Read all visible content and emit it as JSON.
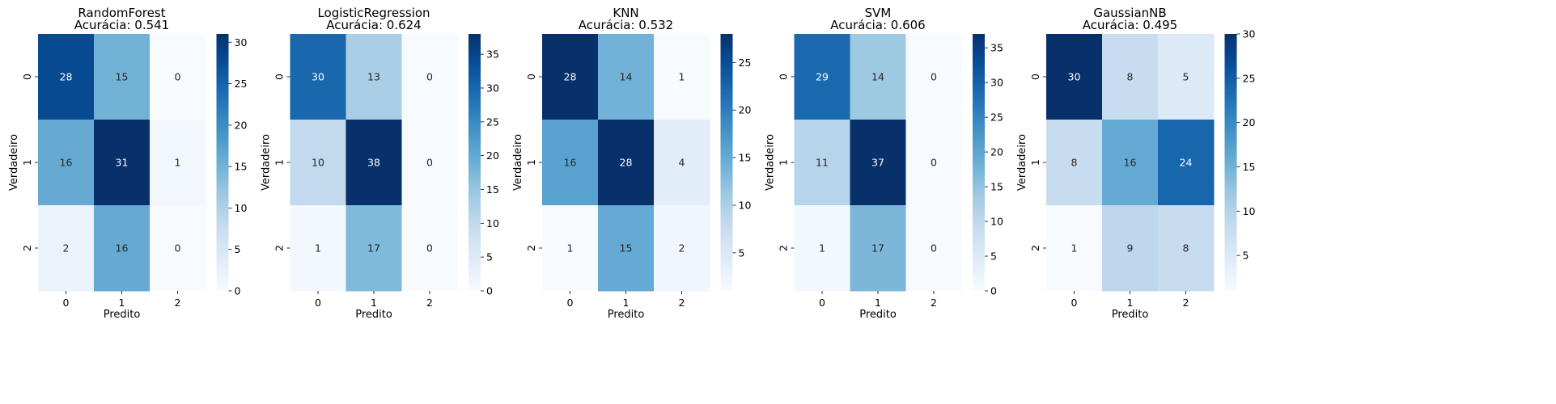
{
  "figure": {
    "colormap": "Blues",
    "colormap_low": "#f7fbff",
    "colormap_high": "#08306b"
  },
  "chart_data": [
    {
      "type": "heatmap",
      "title": [
        "RandomForest",
        "Acurácia: 0.541"
      ],
      "xlabel": "Predito",
      "ylabel": "Verdadeiro",
      "x_categories": [
        "0",
        "1",
        "2"
      ],
      "y_categories": [
        "0",
        "1",
        "2"
      ],
      "matrix": [
        [
          28,
          15,
          0
        ],
        [
          16,
          31,
          1
        ],
        [
          2,
          16,
          0
        ]
      ],
      "color_range": [
        0,
        31
      ],
      "colorbar_ticks": [
        0,
        5,
        10,
        15,
        20,
        25,
        30
      ]
    },
    {
      "type": "heatmap",
      "title": [
        "LogisticRegression",
        "Acurácia: 0.624"
      ],
      "xlabel": "Predito",
      "ylabel": "Verdadeiro",
      "x_categories": [
        "0",
        "1",
        "2"
      ],
      "y_categories": [
        "0",
        "1",
        "2"
      ],
      "matrix": [
        [
          30,
          13,
          0
        ],
        [
          10,
          38,
          0
        ],
        [
          1,
          17,
          0
        ]
      ],
      "color_range": [
        0,
        38
      ],
      "colorbar_ticks": [
        0,
        5,
        10,
        15,
        20,
        25,
        30,
        35
      ]
    },
    {
      "type": "heatmap",
      "title": [
        "KNN",
        "Acurácia: 0.532"
      ],
      "xlabel": "Predito",
      "ylabel": "Verdadeiro",
      "x_categories": [
        "0",
        "1",
        "2"
      ],
      "y_categories": [
        "0",
        "1",
        "2"
      ],
      "matrix": [
        [
          28,
          14,
          1
        ],
        [
          16,
          28,
          4
        ],
        [
          1,
          15,
          2
        ]
      ],
      "color_range": [
        1,
        28
      ],
      "colorbar_ticks": [
        5,
        10,
        15,
        20,
        25
      ]
    },
    {
      "type": "heatmap",
      "title": [
        "SVM",
        "Acurácia: 0.606"
      ],
      "xlabel": "Predito",
      "ylabel": "Verdadeiro",
      "x_categories": [
        "0",
        "1",
        "2"
      ],
      "y_categories": [
        "0",
        "1",
        "2"
      ],
      "matrix": [
        [
          29,
          14,
          0
        ],
        [
          11,
          37,
          0
        ],
        [
          1,
          17,
          0
        ]
      ],
      "color_range": [
        0,
        37
      ],
      "colorbar_ticks": [
        0,
        5,
        10,
        15,
        20,
        25,
        30,
        35
      ]
    },
    {
      "type": "heatmap",
      "title": [
        "GaussianNB",
        "Acurácia: 0.495"
      ],
      "xlabel": "Predito",
      "ylabel": "Verdadeiro",
      "x_categories": [
        "0",
        "1",
        "2"
      ],
      "y_categories": [
        "0",
        "1",
        "2"
      ],
      "matrix": [
        [
          30,
          8,
          5
        ],
        [
          8,
          16,
          24
        ],
        [
          1,
          9,
          8
        ]
      ],
      "color_range": [
        1,
        30
      ],
      "colorbar_ticks": [
        5,
        10,
        15,
        20,
        25,
        30
      ]
    }
  ]
}
